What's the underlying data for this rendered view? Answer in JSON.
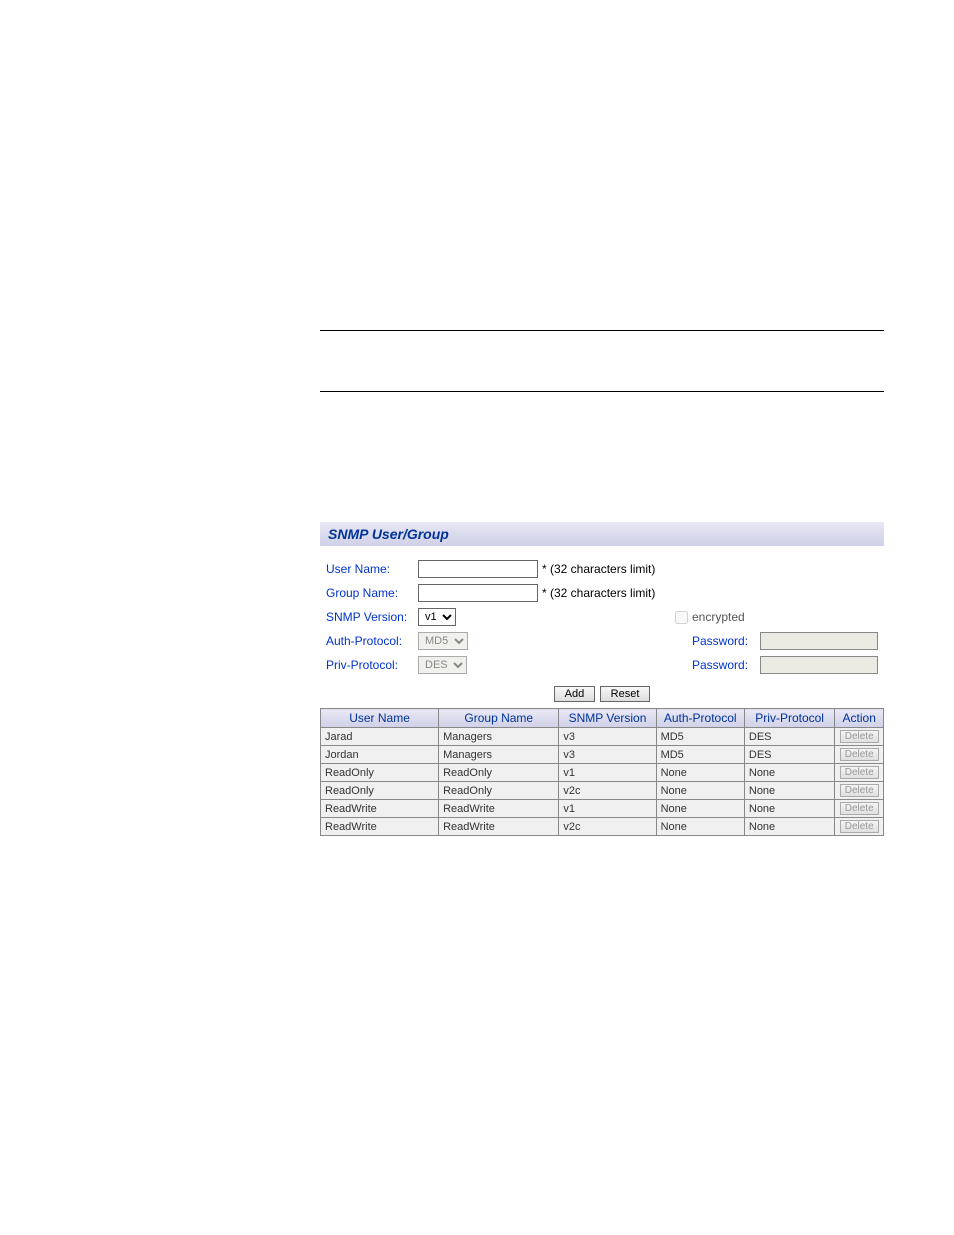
{
  "colors": {
    "label_blue": "#0033cc",
    "header_blue": "#003399",
    "gradient_top": "#e8e8f5",
    "gradient_bottom": "#d0d0e8",
    "disabled_bg": "#ebebe4"
  },
  "section_title": "SNMP User/Group",
  "form": {
    "user_name_label": "User Name:",
    "user_name_value": "",
    "user_name_hint": "* (32 characters limit)",
    "group_name_label": "Group Name:",
    "group_name_value": "",
    "group_name_hint": "* (32 characters limit)",
    "snmp_version_label": "SNMP Version:",
    "snmp_version_value": "v1",
    "encrypted_label": "encrypted",
    "auth_protocol_label": "Auth-Protocol:",
    "auth_protocol_value": "MD5",
    "auth_password_label": "Password:",
    "priv_protocol_label": "Priv-Protocol:",
    "priv_protocol_value": "DES",
    "priv_password_label": "Password:",
    "add_button": "Add",
    "reset_button": "Reset"
  },
  "table": {
    "headers": {
      "user_name": "User Name",
      "group_name": "Group Name",
      "snmp_version": "SNMP Version",
      "auth_protocol": "Auth-Protocol",
      "priv_protocol": "Priv-Protocol",
      "action": "Action"
    },
    "action_label": "Delete",
    "rows": [
      {
        "user": "Jarad",
        "group": "Managers",
        "version": "v3",
        "auth": "MD5",
        "priv": "DES"
      },
      {
        "user": "Jordan",
        "group": "Managers",
        "version": "v3",
        "auth": "MD5",
        "priv": "DES"
      },
      {
        "user": "ReadOnly",
        "group": "ReadOnly",
        "version": "v1",
        "auth": "None",
        "priv": "None"
      },
      {
        "user": "ReadOnly",
        "group": "ReadOnly",
        "version": "v2c",
        "auth": "None",
        "priv": "None"
      },
      {
        "user": "ReadWrite",
        "group": "ReadWrite",
        "version": "v1",
        "auth": "None",
        "priv": "None"
      },
      {
        "user": "ReadWrite",
        "group": "ReadWrite",
        "version": "v2c",
        "auth": "None",
        "priv": "None"
      }
    ]
  }
}
